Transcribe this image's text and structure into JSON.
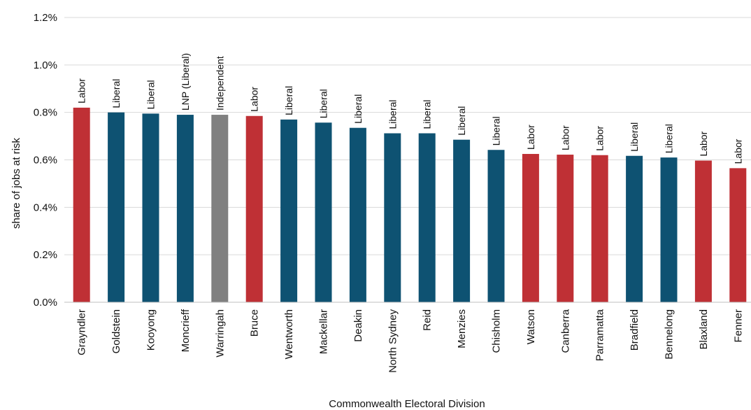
{
  "chart_data": {
    "type": "bar",
    "xlabel": "Commonwealth Electoral Division",
    "ylabel": "share of jobs at risk",
    "ylim": [
      0,
      1.2
    ],
    "yticks": [
      "0.0%",
      "0.2%",
      "0.4%",
      "0.6%",
      "0.8%",
      "1.0%",
      "1.2%"
    ],
    "grid": true,
    "legend": "none",
    "categories": [
      "Grayndler",
      "Goldstein",
      "Kooyong",
      "Moncrieff",
      "Warringah",
      "Bruce",
      "Wentworth",
      "Mackellar",
      "Deakin",
      "North Sydney",
      "Reid",
      "Menzies",
      "Chisholm",
      "Watson",
      "Canberra",
      "Parramatta",
      "Bradfield",
      "Bennelong",
      "Blaxland",
      "Fenner"
    ],
    "values": [
      0.82,
      0.8,
      0.795,
      0.79,
      0.79,
      0.785,
      0.77,
      0.757,
      0.735,
      0.712,
      0.712,
      0.685,
      0.642,
      0.625,
      0.622,
      0.62,
      0.617,
      0.61,
      0.597,
      0.565
    ],
    "parties": [
      "Labor",
      "Liberal",
      "Liberal",
      "LNP (Liberal)",
      "Independent",
      "Labor",
      "Liberal",
      "Liberal",
      "Liberal",
      "Liberal",
      "Liberal",
      "Liberal",
      "Liberal",
      "Labor",
      "Labor",
      "Labor",
      "Liberal",
      "Liberal",
      "Labor",
      "Labor"
    ],
    "colors": {
      "Labor": "#bf3035",
      "Liberal": "#0e5272",
      "LNP (Liberal)": "#0e5272",
      "Independent": "#808080",
      "grid": "#d9d9d9",
      "axis": "#bfbfbf"
    }
  }
}
